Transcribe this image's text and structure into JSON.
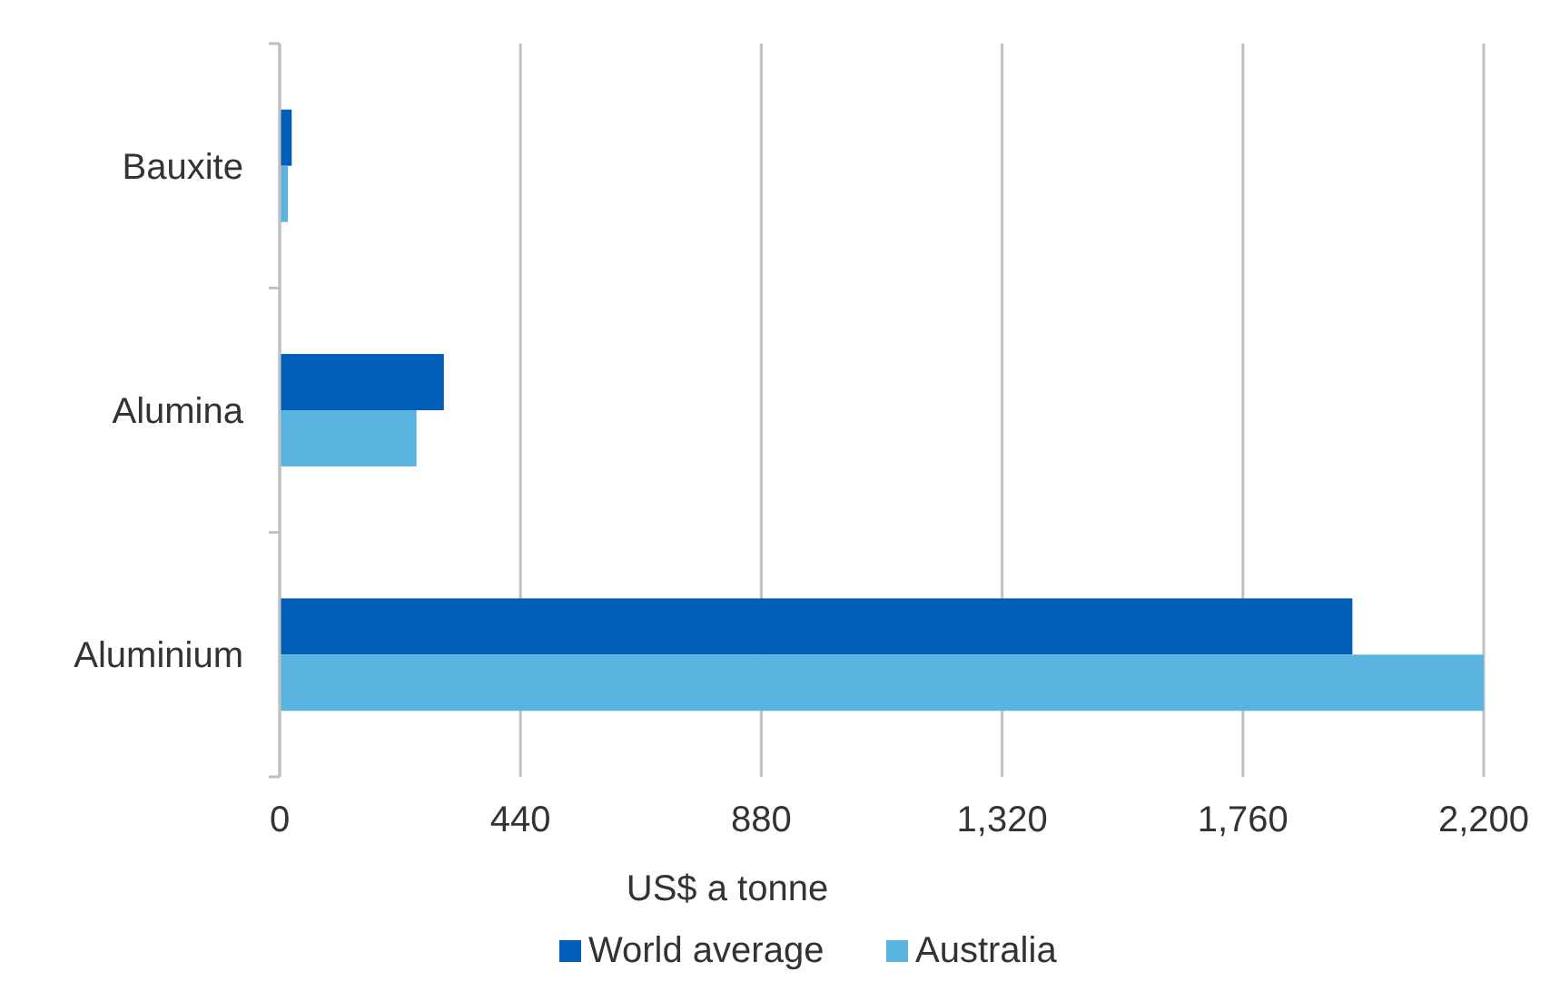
{
  "chart_data": {
    "type": "bar",
    "orientation": "horizontal",
    "categories": [
      "Bauxite",
      "Alumina",
      "Aluminium"
    ],
    "series": [
      {
        "name": "World average",
        "color": "#005eb8",
        "values": [
          22,
          300,
          1960
        ]
      },
      {
        "name": "Australia",
        "color": "#5ab4e0",
        "values": [
          15,
          250,
          2200
        ]
      }
    ],
    "xlabel": "US$ a tonne",
    "xlim": [
      0,
      2200
    ],
    "xticks": [
      {
        "value": 0,
        "label": "0"
      },
      {
        "value": 440,
        "label": "440"
      },
      {
        "value": 880,
        "label": "880"
      },
      {
        "value": 1320,
        "label": "1,320"
      },
      {
        "value": 1760,
        "label": "1,760"
      },
      {
        "value": 2200,
        "label": "2,200"
      }
    ],
    "grid": "x",
    "legend": "bottom"
  }
}
